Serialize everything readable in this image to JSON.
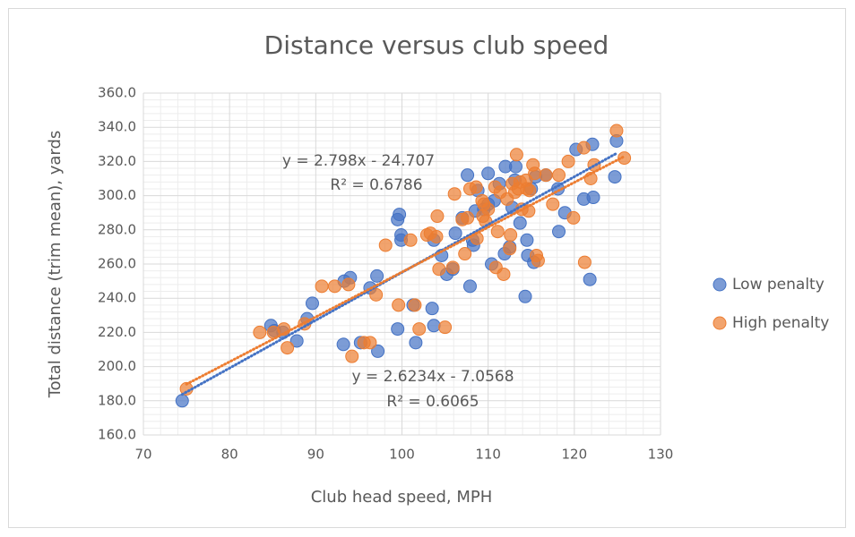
{
  "chart_data": {
    "type": "scatter",
    "title": "Distance versus club speed",
    "x_label": "Club head speed, MPH",
    "y_label": "Total distance (trim mean), yards",
    "xlim": [
      70,
      130
    ],
    "xticks": [
      70,
      80,
      90,
      100,
      110,
      120,
      130
    ],
    "ylim": [
      160,
      360
    ],
    "yticks": [
      {
        "value": 160,
        "label": "160.0"
      },
      {
        "value": 180,
        "label": "180.0"
      },
      {
        "value": 200,
        "label": "200.0"
      },
      {
        "value": 220,
        "label": "220.0"
      },
      {
        "value": 240,
        "label": "240.0"
      },
      {
        "value": 260,
        "label": "260.0"
      },
      {
        "value": 280,
        "label": "280.0"
      },
      {
        "value": 300,
        "label": "300.0"
      },
      {
        "value": 320,
        "label": "320.0"
      },
      {
        "value": 340,
        "label": "340.0"
      },
      {
        "value": 360,
        "label": "360.0"
      }
    ],
    "grid": true,
    "minor_grid": true,
    "legend": "right",
    "series": [
      {
        "name": "Low penalty",
        "color": "#4472c4",
        "x": [
          74.5,
          84.8,
          85.2,
          86.2,
          87.8,
          89,
          89.6,
          93.2,
          93.3,
          94.0,
          95.2,
          96.3,
          97.1,
          97.2,
          99.5,
          99.5,
          99.7,
          99.9,
          99.9,
          101.3,
          101.6,
          103.5,
          103.7,
          103.7,
          104.6,
          105.2,
          105.9,
          106.2,
          107.0,
          107.6,
          107.9,
          108.2,
          108.3,
          108.5,
          108.8,
          109.5,
          110,
          110,
          110.4,
          110.7,
          111.3,
          111.9,
          112,
          112.5,
          112.8,
          113.1,
          113.2,
          113.7,
          114.3,
          114.5,
          114.6,
          115,
          115.3,
          115.5,
          116.7,
          118.1,
          118.2,
          118.9,
          120.2,
          121.1,
          122.1,
          121.8,
          122.2,
          124.9,
          124.7
        ],
        "values": [
          180,
          224,
          221,
          220,
          215,
          228,
          237,
          213,
          250,
          252,
          214,
          246,
          253,
          209,
          222,
          286,
          289,
          277,
          274,
          236,
          214,
          234,
          224,
          274,
          265,
          254,
          257,
          278,
          287,
          312,
          247,
          274,
          271,
          291,
          303,
          292,
          313,
          295,
          260,
          297,
          307,
          266,
          317,
          270,
          293,
          309,
          317,
          284,
          241,
          274,
          265,
          304,
          261,
          311,
          312,
          304,
          279,
          290,
          327,
          298,
          330,
          251,
          299,
          332,
          311
        ],
        "trendline": {
          "slope": 2.798,
          "intercept": -24.707,
          "label": "y = 2.798x - 24.707",
          "r2_label": "R² = 0.6786"
        }
      },
      {
        "name": "High penalty",
        "color": "#ed7d31",
        "x": [
          75,
          83.5,
          85.1,
          86.3,
          86.7,
          88.7,
          90.7,
          92.2,
          93.8,
          94.2,
          95.6,
          96.3,
          97.0,
          98.1,
          99.6,
          101,
          101.5,
          102.0,
          102.9,
          103.3,
          104,
          104.1,
          104.3,
          105,
          105.9,
          106.1,
          107,
          107.3,
          107.6,
          107.9,
          108.6,
          108.7,
          109.3,
          109.4,
          109.5,
          109.7,
          110,
          110.8,
          110.9,
          111.1,
          111.4,
          111.8,
          112.2,
          112.5,
          112.6,
          112.8,
          113.1,
          113.3,
          113.5,
          113.7,
          113.9,
          114.4,
          114.5,
          114.7,
          114.8,
          115.2,
          115.4,
          115.6,
          115.8,
          116.7,
          117.5,
          118.2,
          119.3,
          119.9,
          121.1,
          121.2,
          121.9,
          122.3,
          124.9,
          125.8
        ],
        "values": [
          187,
          220,
          220,
          222,
          211,
          225,
          247,
          247,
          248,
          206,
          214,
          214,
          242,
          271,
          236,
          274,
          236,
          222,
          277,
          278,
          276,
          288,
          257,
          223,
          258,
          301,
          286,
          266,
          287,
          304,
          305,
          275,
          297,
          288,
          295,
          285,
          292,
          305,
          258,
          279,
          302,
          254,
          298,
          269,
          277,
          307,
          302,
          324,
          304,
          308,
          292,
          309,
          304,
          291,
          303,
          318,
          313,
          265,
          262,
          312,
          295,
          312,
          320,
          287,
          328,
          261,
          310,
          318,
          338,
          322
        ],
        "trendline": {
          "slope": 2.6234,
          "intercept": -7.0568,
          "label": "y = 2.6234x - 7.0568",
          "r2_label": "R² = 0.6065"
        }
      }
    ]
  }
}
